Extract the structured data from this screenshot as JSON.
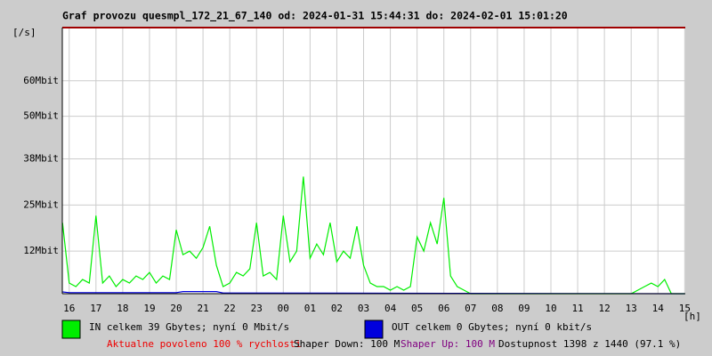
{
  "chart_data": {
    "type": "line",
    "title": "Graf provozu quesmpl_172_21_67_140 od: 2024-01-31 15:44:31 do: 2024-02-01 15:01:20",
    "y_label": "[/s]",
    "x_label": "[h]",
    "xlim": [
      15.742,
      39.022
    ],
    "ylim": [
      0,
      75
    ],
    "xticks": [
      16,
      17,
      18,
      19,
      20,
      21,
      22,
      23,
      {
        "value": 24,
        "label": "00"
      },
      {
        "value": 25,
        "label": "01"
      },
      {
        "value": 26,
        "label": "02"
      },
      {
        "value": 27,
        "label": "03"
      },
      {
        "value": 28,
        "label": "04"
      },
      {
        "value": 29,
        "label": "05"
      },
      {
        "value": 30,
        "label": "06"
      },
      {
        "value": 31,
        "label": "07"
      },
      {
        "value": 32,
        "label": "08"
      },
      {
        "value": 33,
        "label": "09"
      },
      {
        "value": 34,
        "label": "10"
      },
      {
        "value": 35,
        "label": "11"
      },
      {
        "value": 36,
        "label": "12"
      },
      {
        "value": 37,
        "label": "13"
      },
      {
        "value": 38,
        "label": "14"
      },
      {
        "value": 39,
        "label": "15"
      }
    ],
    "yticks": [
      {
        "value": 12,
        "label": "12Mbit"
      },
      {
        "value": 25,
        "label": "25Mbit"
      },
      {
        "value": 38,
        "label": "38Mbit"
      },
      {
        "value": 50,
        "label": "50Mbit"
      },
      {
        "value": 60,
        "label": "60Mbit"
      }
    ],
    "grid": true,
    "series": [
      {
        "name": "IN celkem 39 Gbytes; nyní 0 Mbit/s",
        "color": "#00ee00",
        "x": [
          15.75,
          16,
          16.25,
          16.5,
          16.75,
          17,
          17.25,
          17.5,
          17.75,
          18,
          18.25,
          18.5,
          18.75,
          19,
          19.25,
          19.5,
          19.75,
          20,
          20.25,
          20.5,
          20.75,
          21,
          21.25,
          21.5,
          21.75,
          22,
          22.25,
          22.5,
          22.75,
          23,
          23.25,
          23.5,
          23.75,
          24,
          24.25,
          24.5,
          24.75,
          25,
          25.25,
          25.5,
          25.75,
          26,
          26.25,
          26.5,
          26.75,
          27,
          27.25,
          27.5,
          27.75,
          28,
          28.25,
          28.5,
          28.75,
          29,
          29.25,
          29.5,
          29.75,
          30,
          30.25,
          30.5,
          30.75,
          31,
          37,
          37.5,
          37.75,
          38,
          38.25,
          38.5,
          39
        ],
        "values": [
          20,
          3,
          2,
          4,
          3,
          22,
          3,
          5,
          2,
          4,
          3,
          5,
          4,
          6,
          3,
          5,
          4,
          18,
          11,
          12,
          10,
          13,
          19,
          8,
          2,
          3,
          6,
          5,
          7,
          20,
          5,
          6,
          4,
          22,
          9,
          12,
          33,
          10,
          14,
          11,
          20,
          9,
          12,
          10,
          19,
          8,
          3,
          2,
          2,
          1,
          2,
          1,
          2,
          16,
          12,
          20,
          14,
          27,
          5,
          2,
          1,
          0,
          0,
          2,
          3,
          2,
          4,
          0,
          0
        ]
      },
      {
        "name": "OUT celkem 0 Gbytes; nyní 0 kbit/s",
        "color": "#0000dd",
        "x": [
          15.75,
          16,
          20,
          20.25,
          21.5,
          21.75,
          39
        ],
        "values": [
          0.5,
          0.3,
          0.3,
          0.6,
          0.6,
          0.2,
          0
        ]
      }
    ],
    "footer": [
      "Aktualne povoleno 100 % rychlosti",
      "Shaper Down: 100 M",
      "Shaper Up: 100 M",
      "Dostupnost 1398 z 1440 (97.1 %)"
    ]
  }
}
